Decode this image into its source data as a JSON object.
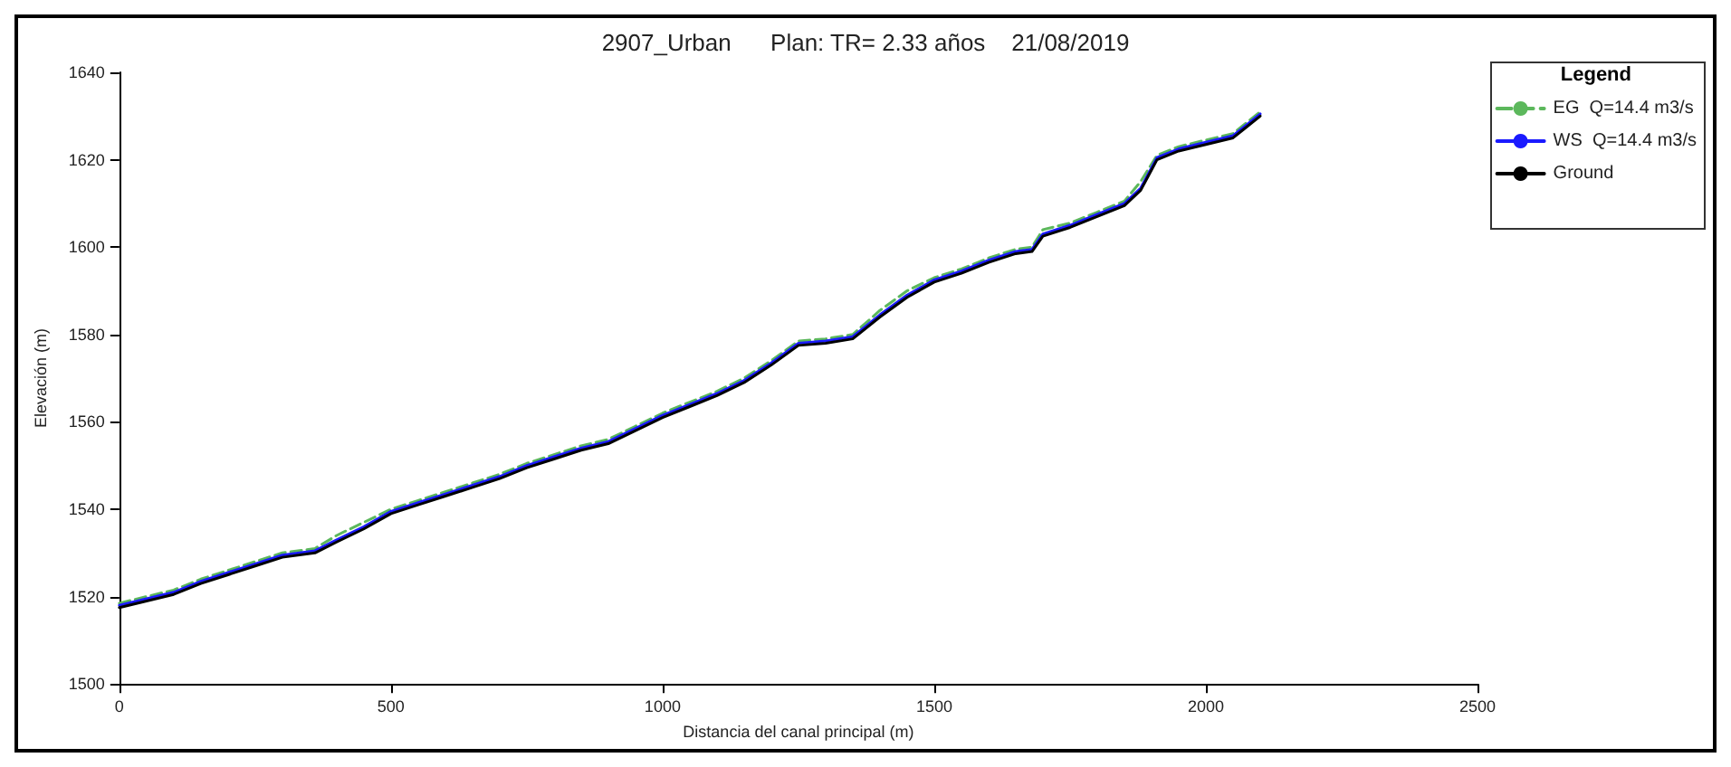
{
  "chart_data": {
    "type": "line",
    "title": "2907_Urban      Plan: TR= 2.33 años    21/08/2019",
    "xlabel": "Distancia del canal principal (m)",
    "ylabel": "Elevación (m)",
    "legend_title": "Legend",
    "legend": "top right",
    "grid": false,
    "marker": "none",
    "x": [
      0,
      50,
      100,
      150,
      200,
      250,
      300,
      360,
      400,
      450,
      500,
      550,
      600,
      650,
      700,
      750,
      800,
      850,
      900,
      950,
      1000,
      1050,
      1100,
      1150,
      1200,
      1250,
      1300,
      1350,
      1400,
      1450,
      1500,
      1550,
      1600,
      1650,
      1680,
      1700,
      1750,
      1800,
      1850,
      1880,
      1910,
      1950,
      2000,
      2050,
      2070,
      2100
    ],
    "xlim": [
      0,
      2500
    ],
    "xticks": [
      0,
      500,
      1000,
      1500,
      2000,
      2500
    ],
    "ylim": [
      1500,
      1640
    ],
    "yticks": [
      1500,
      1520,
      1540,
      1560,
      1580,
      1600,
      1620,
      1640
    ],
    "series": [
      {
        "name": "EG  Q=14.4 m3/s",
        "color": "#5cb85c",
        "line_style": "dashed",
        "values": [
          1518.5,
          1520,
          1521.5,
          1524,
          1526,
          1528,
          1530,
          1531,
          1534,
          1537,
          1540,
          1542,
          1544,
          1546,
          1548,
          1550.5,
          1552.5,
          1554.5,
          1556,
          1559,
          1562,
          1564.5,
          1567,
          1570,
          1574,
          1578.5,
          1579,
          1580,
          1585.5,
          1590,
          1593,
          1595,
          1597.5,
          1599.5,
          1600,
          1604,
          1605.5,
          1608,
          1610.5,
          1615,
          1621,
          1623,
          1624.5,
          1626,
          1628,
          1631
        ]
      },
      {
        "name": "WS  Q=14.4 m3/s",
        "color": "#1a1aff",
        "line_style": "solid",
        "values": [
          1518,
          1519.5,
          1521,
          1523.5,
          1525.5,
          1527.5,
          1529.5,
          1530.5,
          1533,
          1536,
          1539.5,
          1541.5,
          1543.5,
          1545.5,
          1547.5,
          1550,
          1552,
          1554,
          1555.5,
          1558.5,
          1561.5,
          1564,
          1566.5,
          1569.5,
          1573.5,
          1578,
          1578.5,
          1579.5,
          1584.5,
          1589,
          1592.5,
          1594.5,
          1597,
          1599,
          1599.5,
          1603,
          1605,
          1607.5,
          1610,
          1613.5,
          1620.5,
          1622.5,
          1624,
          1625.5,
          1627.5,
          1630.5
        ]
      },
      {
        "name": "Ground",
        "color": "#000000",
        "line_style": "solid",
        "values": [
          1517.5,
          1519,
          1520.5,
          1523,
          1525,
          1527,
          1529,
          1530,
          1532.5,
          1535.5,
          1539,
          1541,
          1543,
          1545,
          1547,
          1549.5,
          1551.5,
          1553.5,
          1555,
          1558,
          1561,
          1563.5,
          1566,
          1569,
          1573,
          1577.5,
          1578,
          1579,
          1584,
          1588.5,
          1592,
          1594,
          1596.5,
          1598.5,
          1599,
          1602.5,
          1604.5,
          1607,
          1609.5,
          1613,
          1620,
          1622,
          1623.5,
          1625,
          1627,
          1630
        ]
      }
    ]
  }
}
